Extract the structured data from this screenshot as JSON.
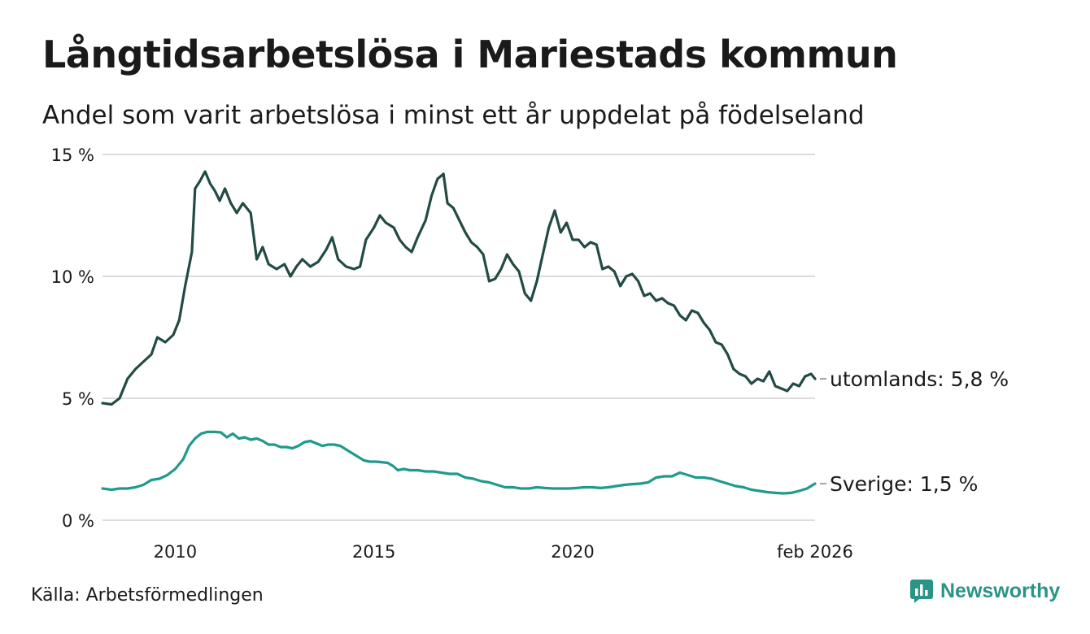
{
  "title": "Långtidsarbetslösa i Mariestads kommun",
  "subtitle": "Andel som varit arbetslösa i minst ett år uppdelat på födelseland",
  "source": "Källa: Arbetsförmedlingen",
  "brand": {
    "name": "Newsworthy",
    "icon": "newsworthy-logo-icon",
    "color": "#2a9485"
  },
  "chart_data": {
    "type": "line",
    "y_ticks": [
      {
        "value": 0,
        "label": "0 %"
      },
      {
        "value": 5,
        "label": "5 %"
      },
      {
        "value": 10,
        "label": "10 %"
      },
      {
        "value": 15,
        "label": "15 %"
      }
    ],
    "x_ticks": [
      {
        "value": 2010,
        "label": "2010"
      },
      {
        "value": 2015,
        "label": "2015"
      },
      {
        "value": 2020,
        "label": "2020"
      },
      {
        "value": 2026.1,
        "label": "feb 2026"
      }
    ],
    "xlim": [
      2008.17,
      2026.1
    ],
    "ylim": [
      0,
      15
    ],
    "grid": true,
    "series": [
      {
        "name": "utomlands",
        "label": "utomlands: 5,8 %",
        "color": "#234a44",
        "points": [
          [
            2008.17,
            4.8
          ],
          [
            2008.4,
            4.75
          ],
          [
            2008.6,
            5.0
          ],
          [
            2008.8,
            5.8
          ],
          [
            2009.0,
            6.2
          ],
          [
            2009.2,
            6.5
          ],
          [
            2009.4,
            6.8
          ],
          [
            2009.55,
            7.5
          ],
          [
            2009.75,
            7.3
          ],
          [
            2009.95,
            7.6
          ],
          [
            2010.1,
            8.2
          ],
          [
            2010.25,
            9.6
          ],
          [
            2010.42,
            11.0
          ],
          [
            2010.5,
            13.6
          ],
          [
            2010.62,
            13.9
          ],
          [
            2010.75,
            14.3
          ],
          [
            2010.88,
            13.8
          ],
          [
            2011.0,
            13.5
          ],
          [
            2011.12,
            13.1
          ],
          [
            2011.25,
            13.6
          ],
          [
            2011.4,
            13.0
          ],
          [
            2011.55,
            12.6
          ],
          [
            2011.7,
            13.0
          ],
          [
            2011.9,
            12.6
          ],
          [
            2012.05,
            10.7
          ],
          [
            2012.2,
            11.2
          ],
          [
            2012.35,
            10.5
          ],
          [
            2012.55,
            10.3
          ],
          [
            2012.75,
            10.5
          ],
          [
            2012.9,
            10.0
          ],
          [
            2013.05,
            10.4
          ],
          [
            2013.2,
            10.7
          ],
          [
            2013.4,
            10.4
          ],
          [
            2013.6,
            10.6
          ],
          [
            2013.8,
            11.1
          ],
          [
            2013.95,
            11.6
          ],
          [
            2014.1,
            10.7
          ],
          [
            2014.3,
            10.4
          ],
          [
            2014.5,
            10.3
          ],
          [
            2014.65,
            10.4
          ],
          [
            2014.8,
            11.5
          ],
          [
            2015.0,
            12.0
          ],
          [
            2015.15,
            12.5
          ],
          [
            2015.3,
            12.2
          ],
          [
            2015.5,
            12.0
          ],
          [
            2015.65,
            11.5
          ],
          [
            2015.8,
            11.2
          ],
          [
            2015.95,
            11.0
          ],
          [
            2016.1,
            11.6
          ],
          [
            2016.3,
            12.3
          ],
          [
            2016.45,
            13.3
          ],
          [
            2016.6,
            14.0
          ],
          [
            2016.75,
            14.2
          ],
          [
            2016.85,
            13.0
          ],
          [
            2017.0,
            12.8
          ],
          [
            2017.15,
            12.3
          ],
          [
            2017.3,
            11.8
          ],
          [
            2017.45,
            11.4
          ],
          [
            2017.6,
            11.2
          ],
          [
            2017.75,
            10.9
          ],
          [
            2017.9,
            9.8
          ],
          [
            2018.05,
            9.9
          ],
          [
            2018.2,
            10.3
          ],
          [
            2018.35,
            10.9
          ],
          [
            2018.5,
            10.5
          ],
          [
            2018.65,
            10.2
          ],
          [
            2018.8,
            9.3
          ],
          [
            2018.95,
            9.0
          ],
          [
            2019.1,
            9.8
          ],
          [
            2019.25,
            10.9
          ],
          [
            2019.4,
            12.0
          ],
          [
            2019.55,
            12.7
          ],
          [
            2019.7,
            11.8
          ],
          [
            2019.85,
            12.2
          ],
          [
            2020.0,
            11.5
          ],
          [
            2020.15,
            11.5
          ],
          [
            2020.3,
            11.2
          ],
          [
            2020.45,
            11.4
          ],
          [
            2020.6,
            11.3
          ],
          [
            2020.75,
            10.3
          ],
          [
            2020.9,
            10.4
          ],
          [
            2021.05,
            10.2
          ],
          [
            2021.2,
            9.6
          ],
          [
            2021.35,
            10.0
          ],
          [
            2021.5,
            10.1
          ],
          [
            2021.65,
            9.8
          ],
          [
            2021.8,
            9.2
          ],
          [
            2021.95,
            9.3
          ],
          [
            2022.1,
            9.0
          ],
          [
            2022.25,
            9.1
          ],
          [
            2022.4,
            8.9
          ],
          [
            2022.55,
            8.8
          ],
          [
            2022.7,
            8.4
          ],
          [
            2022.85,
            8.2
          ],
          [
            2023.0,
            8.6
          ],
          [
            2023.15,
            8.5
          ],
          [
            2023.3,
            8.1
          ],
          [
            2023.45,
            7.8
          ],
          [
            2023.6,
            7.3
          ],
          [
            2023.75,
            7.2
          ],
          [
            2023.9,
            6.8
          ],
          [
            2024.05,
            6.2
          ],
          [
            2024.2,
            6.0
          ],
          [
            2024.35,
            5.9
          ],
          [
            2024.5,
            5.6
          ],
          [
            2024.65,
            5.8
          ],
          [
            2024.8,
            5.7
          ],
          [
            2024.95,
            6.1
          ],
          [
            2025.1,
            5.5
          ],
          [
            2025.25,
            5.4
          ],
          [
            2025.4,
            5.3
          ],
          [
            2025.55,
            5.6
          ],
          [
            2025.7,
            5.5
          ],
          [
            2025.85,
            5.9
          ],
          [
            2026.0,
            6.0
          ],
          [
            2026.1,
            5.8
          ]
        ]
      },
      {
        "name": "Sverige",
        "label": "Sverige: 1,5 %",
        "color": "#1f9a8b",
        "points": [
          [
            2008.17,
            1.3
          ],
          [
            2008.4,
            1.25
          ],
          [
            2008.6,
            1.3
          ],
          [
            2008.8,
            1.3
          ],
          [
            2009.0,
            1.35
          ],
          [
            2009.2,
            1.45
          ],
          [
            2009.4,
            1.65
          ],
          [
            2009.6,
            1.7
          ],
          [
            2009.8,
            1.85
          ],
          [
            2010.0,
            2.1
          ],
          [
            2010.2,
            2.5
          ],
          [
            2010.35,
            3.05
          ],
          [
            2010.5,
            3.35
          ],
          [
            2010.65,
            3.55
          ],
          [
            2010.8,
            3.62
          ],
          [
            2011.0,
            3.62
          ],
          [
            2011.15,
            3.6
          ],
          [
            2011.3,
            3.4
          ],
          [
            2011.45,
            3.55
          ],
          [
            2011.6,
            3.35
          ],
          [
            2011.75,
            3.4
          ],
          [
            2011.9,
            3.3
          ],
          [
            2012.05,
            3.35
          ],
          [
            2012.2,
            3.25
          ],
          [
            2012.35,
            3.1
          ],
          [
            2012.5,
            3.1
          ],
          [
            2012.65,
            3.0
          ],
          [
            2012.8,
            3.0
          ],
          [
            2012.95,
            2.95
          ],
          [
            2013.1,
            3.05
          ],
          [
            2013.25,
            3.2
          ],
          [
            2013.4,
            3.25
          ],
          [
            2013.55,
            3.15
          ],
          [
            2013.7,
            3.05
          ],
          [
            2013.85,
            3.1
          ],
          [
            2014.0,
            3.1
          ],
          [
            2014.15,
            3.05
          ],
          [
            2014.3,
            2.9
          ],
          [
            2014.45,
            2.75
          ],
          [
            2014.6,
            2.6
          ],
          [
            2014.75,
            2.45
          ],
          [
            2014.9,
            2.4
          ],
          [
            2015.05,
            2.4
          ],
          [
            2015.2,
            2.38
          ],
          [
            2015.35,
            2.35
          ],
          [
            2015.5,
            2.2
          ],
          [
            2015.6,
            2.05
          ],
          [
            2015.75,
            2.1
          ],
          [
            2015.9,
            2.05
          ],
          [
            2016.1,
            2.05
          ],
          [
            2016.3,
            2.0
          ],
          [
            2016.5,
            2.0
          ],
          [
            2016.7,
            1.95
          ],
          [
            2016.9,
            1.9
          ],
          [
            2017.1,
            1.9
          ],
          [
            2017.3,
            1.75
          ],
          [
            2017.5,
            1.7
          ],
          [
            2017.7,
            1.6
          ],
          [
            2017.9,
            1.55
          ],
          [
            2018.1,
            1.45
          ],
          [
            2018.3,
            1.35
          ],
          [
            2018.5,
            1.35
          ],
          [
            2018.7,
            1.3
          ],
          [
            2018.9,
            1.3
          ],
          [
            2019.1,
            1.35
          ],
          [
            2019.3,
            1.32
          ],
          [
            2019.5,
            1.3
          ],
          [
            2019.7,
            1.3
          ],
          [
            2019.9,
            1.3
          ],
          [
            2020.1,
            1.32
          ],
          [
            2020.3,
            1.35
          ],
          [
            2020.5,
            1.35
          ],
          [
            2020.7,
            1.32
          ],
          [
            2020.9,
            1.35
          ],
          [
            2021.1,
            1.4
          ],
          [
            2021.3,
            1.45
          ],
          [
            2021.5,
            1.48
          ],
          [
            2021.7,
            1.5
          ],
          [
            2021.9,
            1.55
          ],
          [
            2022.1,
            1.75
          ],
          [
            2022.3,
            1.8
          ],
          [
            2022.5,
            1.8
          ],
          [
            2022.7,
            1.95
          ],
          [
            2022.9,
            1.85
          ],
          [
            2023.1,
            1.75
          ],
          [
            2023.3,
            1.75
          ],
          [
            2023.5,
            1.7
          ],
          [
            2023.7,
            1.6
          ],
          [
            2023.9,
            1.5
          ],
          [
            2024.1,
            1.4
          ],
          [
            2024.3,
            1.35
          ],
          [
            2024.5,
            1.25
          ],
          [
            2024.7,
            1.2
          ],
          [
            2024.9,
            1.15
          ],
          [
            2025.1,
            1.12
          ],
          [
            2025.3,
            1.1
          ],
          [
            2025.5,
            1.12
          ],
          [
            2025.7,
            1.2
          ],
          [
            2025.9,
            1.3
          ],
          [
            2026.0,
            1.4
          ],
          [
            2026.1,
            1.5
          ]
        ]
      }
    ]
  }
}
